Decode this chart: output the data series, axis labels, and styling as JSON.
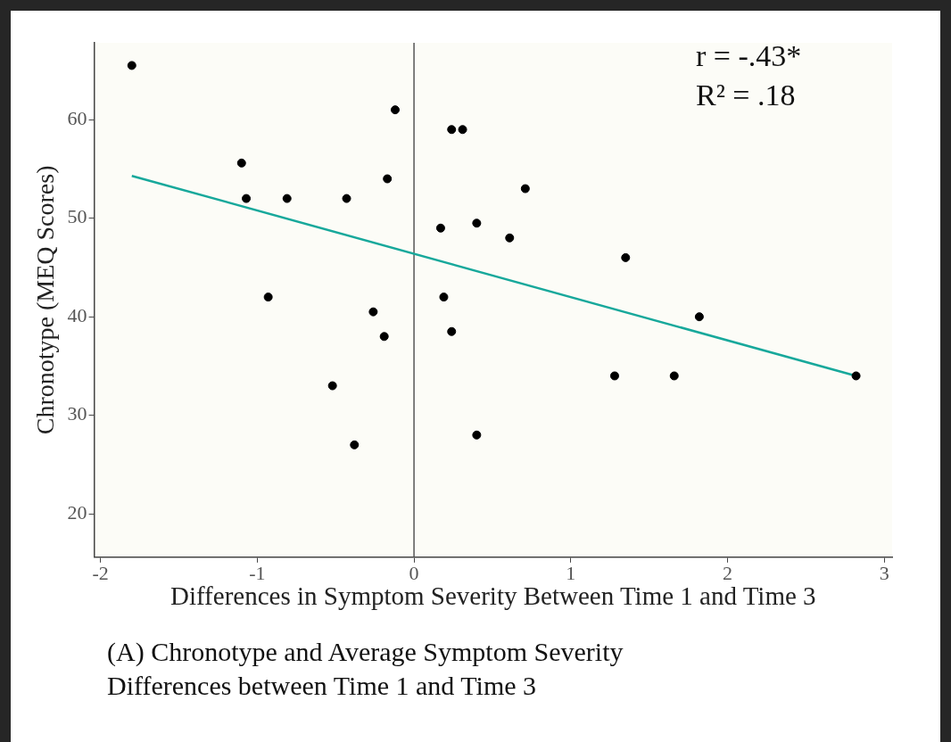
{
  "chart_data": {
    "type": "scatter",
    "xlabel": "Differences in Symptom Severity Between Time 1 and Time 3",
    "ylabel": "Chronotype (MEQ Scores)",
    "xlim": [
      -2.04,
      3.05
    ],
    "ylim": [
      15.6,
      67.8
    ],
    "xticks": [
      -2,
      -1,
      0,
      1,
      2,
      3
    ],
    "yticks": [
      20,
      30,
      40,
      50,
      60
    ],
    "grid": false,
    "legend": false,
    "marker": "circle",
    "series": [
      {
        "color": "#000000",
        "x": [
          -1.8,
          -1.1,
          -1.07,
          -0.81,
          -0.43,
          -0.12,
          -0.17,
          -0.93,
          -0.26,
          -0.19,
          -0.52,
          -0.38,
          0.17,
          0.19,
          0.24,
          0.24,
          0.31,
          0.4,
          0.4,
          0.71,
          0.61,
          1.35,
          1.82,
          1.28,
          1.66,
          2.82
        ],
        "values": [
          65.5,
          55.6,
          52.0,
          52.0,
          52.0,
          61.0,
          54.0,
          42.0,
          40.5,
          38.0,
          33.0,
          27.0,
          49.0,
          42.0,
          38.5,
          59.0,
          59.0,
          49.5,
          28.0,
          53.0,
          48.0,
          46.0,
          40.0,
          34.0,
          34.0,
          34.0
        ]
      },
      {
        "type": "line",
        "marker": "none",
        "color": "#17a89b",
        "x": [
          -1.8,
          2.82
        ],
        "values": [
          54.3,
          34.0
        ]
      }
    ],
    "ref_lines": [
      {
        "axis": "x",
        "value": 0,
        "color": "#555555"
      }
    ],
    "annotations": [
      "r = -.43*",
      "R² = .18",
      "(A) Chronotype and Average Symptom Severity Differences between Time 1 and Time 3"
    ]
  }
}
